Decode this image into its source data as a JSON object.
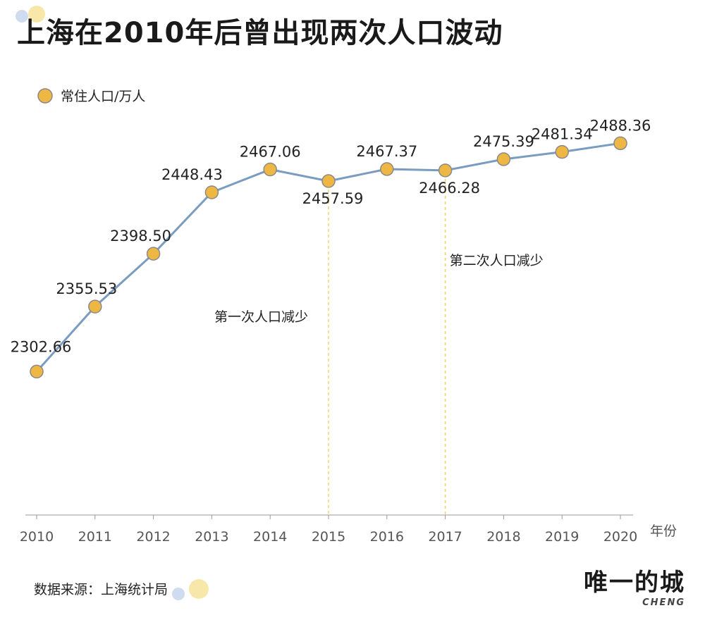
{
  "title": "上海在2010年后曾出现两次人口波动",
  "source": "数据来源：上海统计局",
  "brand": {
    "name": "唯一的城",
    "sub": "CHENG"
  },
  "colors": {
    "line": "#7a9cc0",
    "marker": "#eeb744",
    "marker_edge": "#8a8a8a",
    "guide": "#f0d063",
    "axis": "#999999"
  },
  "chart_data": {
    "type": "line",
    "x": [
      "2010",
      "2011",
      "2012",
      "2013",
      "2014",
      "2015",
      "2016",
      "2017",
      "2018",
      "2019",
      "2020"
    ],
    "series": [
      {
        "name": "常住人口/万人",
        "values": [
          2302.66,
          2355.53,
          2398.5,
          2448.43,
          2467.06,
          2457.59,
          2467.37,
          2466.28,
          2475.39,
          2481.34,
          2488.36
        ],
        "labels": [
          "2302.66",
          "2355.53",
          "2398.50",
          "2448.43",
          "2467.06",
          "2457.59",
          "2467.37",
          "2466.28",
          "2475.39",
          "2481.34",
          "2488.36"
        ]
      }
    ],
    "xlabel": "年份",
    "ylim": [
      2186,
      2496
    ],
    "legend": "top-left",
    "grid": false,
    "annotations": [
      {
        "x": "2015",
        "text": "第一次人口减少"
      },
      {
        "x": "2017",
        "text": "第二次人口减少"
      }
    ]
  }
}
